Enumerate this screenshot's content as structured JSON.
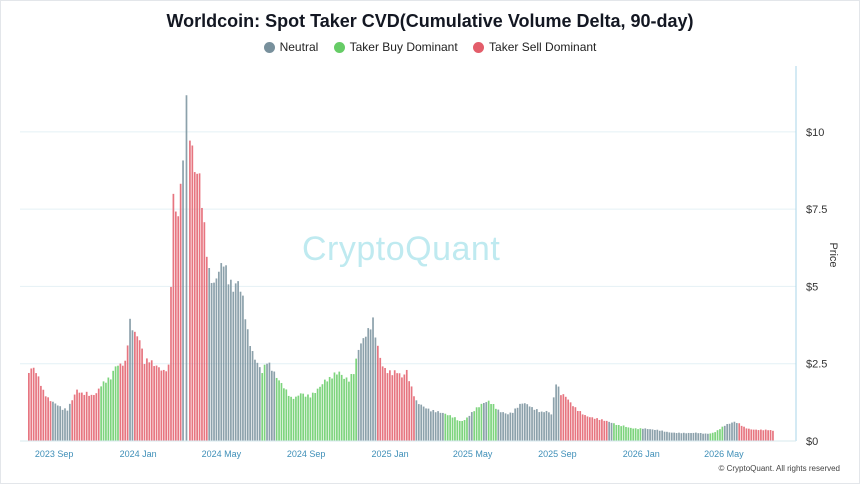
{
  "chart_data": {
    "type": "bar",
    "title": "Worldcoin: Spot Taker CVD(Cumulative Volume Delta, 90-day)",
    "ylabel": "Price",
    "ylim": [
      0,
      12
    ],
    "y_ticks": [
      "$0",
      "$2.5",
      "$5",
      "$7.5",
      "$10"
    ],
    "y_tick_values": [
      0,
      2.5,
      5,
      7.5,
      10
    ],
    "x_ticks": [
      "2023 Sep",
      "2024 Jan",
      "2024 May",
      "2024 Sep",
      "2025 Jan",
      "2025 May",
      "2025 Sep",
      "2026 Jan",
      "2026 May"
    ],
    "x_tick_dates": [
      "2023-09-01",
      "2024-01-01",
      "2024-05-01",
      "2024-09-01",
      "2025-01-01",
      "2025-05-01",
      "2025-09-01",
      "2026-01-01",
      "2026-05-01"
    ],
    "x_range": [
      "2023-07-25",
      "2026-08-05"
    ],
    "legend": [
      {
        "name": "Neutral",
        "color": "#78909c"
      },
      {
        "name": "Taker Buy Dominant",
        "color": "#66cc66"
      },
      {
        "name": "Taker Sell Dominant",
        "color": "#e35d6a"
      }
    ],
    "legend_position": "top-center",
    "grid": true,
    "series": [
      {
        "name": "Price",
        "points": [
          [
            "2023-07-25",
            2.2,
            "sell"
          ],
          [
            "2023-08-01",
            2.3,
            "sell"
          ],
          [
            "2023-08-08",
            2.0,
            "sell"
          ],
          [
            "2023-08-15",
            1.6,
            "sell"
          ],
          [
            "2023-08-22",
            1.4,
            "sell"
          ],
          [
            "2023-08-29",
            1.3,
            "neutral"
          ],
          [
            "2023-09-05",
            1.2,
            "neutral"
          ],
          [
            "2023-09-12",
            1.05,
            "neutral"
          ],
          [
            "2023-09-19",
            1.0,
            "neutral"
          ],
          [
            "2023-09-26",
            1.3,
            "sell"
          ],
          [
            "2023-10-03",
            1.6,
            "sell"
          ],
          [
            "2023-10-10",
            1.5,
            "sell"
          ],
          [
            "2023-10-17",
            1.55,
            "sell"
          ],
          [
            "2023-10-24",
            1.5,
            "sell"
          ],
          [
            "2023-10-31",
            1.6,
            "sell"
          ],
          [
            "2023-11-07",
            1.85,
            "buy"
          ],
          [
            "2023-11-14",
            1.95,
            "buy"
          ],
          [
            "2023-11-21",
            2.0,
            "buy"
          ],
          [
            "2023-11-28",
            2.35,
            "buy"
          ],
          [
            "2023-12-05",
            2.4,
            "sell"
          ],
          [
            "2023-12-12",
            2.5,
            "sell"
          ],
          [
            "2023-12-19",
            3.9,
            "neutral"
          ],
          [
            "2023-12-26",
            3.6,
            "sell"
          ],
          [
            "2024-01-02",
            3.4,
            "sell"
          ],
          [
            "2024-01-09",
            2.6,
            "sell"
          ],
          [
            "2024-01-16",
            2.6,
            "sell"
          ],
          [
            "2024-01-23",
            2.4,
            "sell"
          ],
          [
            "2024-01-30",
            2.3,
            "sell"
          ],
          [
            "2024-02-06",
            2.2,
            "sell"
          ],
          [
            "2024-02-13",
            2.4,
            "sell"
          ],
          [
            "2024-02-20",
            8.0,
            "sell"
          ],
          [
            "2024-02-27",
            7.5,
            "sell"
          ],
          [
            "2024-03-05",
            9.5,
            "neutral"
          ],
          [
            "2024-03-10",
            11.6,
            "neutral"
          ],
          [
            "2024-03-15",
            9.8,
            "sell"
          ],
          [
            "2024-03-22",
            8.5,
            "sell"
          ],
          [
            "2024-03-29",
            8.3,
            "sell"
          ],
          [
            "2024-04-05",
            6.8,
            "sell"
          ],
          [
            "2024-04-12",
            5.5,
            "neutral"
          ],
          [
            "2024-04-19",
            5.2,
            "neutral"
          ],
          [
            "2024-04-26",
            5.7,
            "neutral"
          ],
          [
            "2024-05-03",
            5.9,
            "neutral"
          ],
          [
            "2024-05-10",
            5.2,
            "neutral"
          ],
          [
            "2024-05-17",
            4.8,
            "neutral"
          ],
          [
            "2024-05-24",
            5.0,
            "neutral"
          ],
          [
            "2024-05-31",
            4.5,
            "neutral"
          ],
          [
            "2024-06-07",
            3.5,
            "neutral"
          ],
          [
            "2024-06-14",
            2.9,
            "neutral"
          ],
          [
            "2024-06-21",
            2.6,
            "neutral"
          ],
          [
            "2024-06-28",
            2.3,
            "buy"
          ],
          [
            "2024-07-05",
            2.6,
            "neutral"
          ],
          [
            "2024-07-12",
            2.3,
            "neutral"
          ],
          [
            "2024-07-19",
            2.0,
            "buy"
          ],
          [
            "2024-07-26",
            1.8,
            "buy"
          ],
          [
            "2024-08-02",
            1.6,
            "buy"
          ],
          [
            "2024-08-09",
            1.4,
            "buy"
          ],
          [
            "2024-08-16",
            1.45,
            "buy"
          ],
          [
            "2024-08-23",
            1.6,
            "buy"
          ],
          [
            "2024-08-30",
            1.5,
            "buy"
          ],
          [
            "2024-09-06",
            1.45,
            "buy"
          ],
          [
            "2024-09-13",
            1.55,
            "buy"
          ],
          [
            "2024-09-20",
            1.7,
            "buy"
          ],
          [
            "2024-09-27",
            1.9,
            "buy"
          ],
          [
            "2024-10-04",
            2.0,
            "buy"
          ],
          [
            "2024-10-11",
            2.2,
            "buy"
          ],
          [
            "2024-10-18",
            2.3,
            "buy"
          ],
          [
            "2024-10-25",
            2.1,
            "buy"
          ],
          [
            "2024-11-01",
            2.0,
            "buy"
          ],
          [
            "2024-11-08",
            2.2,
            "buy"
          ],
          [
            "2024-11-15",
            2.9,
            "neutral"
          ],
          [
            "2024-11-22",
            3.2,
            "neutral"
          ],
          [
            "2024-11-29",
            3.5,
            "neutral"
          ],
          [
            "2024-12-06",
            3.9,
            "neutral"
          ],
          [
            "2024-12-13",
            3.1,
            "sell"
          ],
          [
            "2024-12-20",
            2.5,
            "sell"
          ],
          [
            "2024-12-27",
            2.3,
            "sell"
          ],
          [
            "2025-01-03",
            2.2,
            "sell"
          ],
          [
            "2025-01-10",
            2.2,
            "sell"
          ],
          [
            "2025-01-17",
            2.0,
            "sell"
          ],
          [
            "2025-01-24",
            2.2,
            "sell"
          ],
          [
            "2025-01-31",
            1.7,
            "sell"
          ],
          [
            "2025-02-07",
            1.3,
            "neutral"
          ],
          [
            "2025-02-14",
            1.2,
            "neutral"
          ],
          [
            "2025-02-21",
            1.1,
            "neutral"
          ],
          [
            "2025-02-28",
            1.0,
            "neutral"
          ],
          [
            "2025-03-07",
            0.95,
            "neutral"
          ],
          [
            "2025-03-14",
            0.9,
            "neutral"
          ],
          [
            "2025-03-21",
            0.85,
            "buy"
          ],
          [
            "2025-03-28",
            0.8,
            "buy"
          ],
          [
            "2025-04-04",
            0.75,
            "buy"
          ],
          [
            "2025-04-11",
            0.65,
            "buy"
          ],
          [
            "2025-04-18",
            0.7,
            "buy"
          ],
          [
            "2025-04-25",
            0.85,
            "neutral"
          ],
          [
            "2025-05-02",
            1.0,
            "buy"
          ],
          [
            "2025-05-09",
            1.1,
            "buy"
          ],
          [
            "2025-05-16",
            1.2,
            "neutral"
          ],
          [
            "2025-05-23",
            1.25,
            "buy"
          ],
          [
            "2025-05-30",
            1.15,
            "buy"
          ],
          [
            "2025-06-06",
            1.0,
            "neutral"
          ],
          [
            "2025-06-13",
            0.95,
            "neutral"
          ],
          [
            "2025-06-20",
            0.9,
            "neutral"
          ],
          [
            "2025-06-27",
            0.95,
            "neutral"
          ],
          [
            "2025-07-04",
            1.1,
            "neutral"
          ],
          [
            "2025-07-11",
            1.2,
            "neutral"
          ],
          [
            "2025-07-18",
            1.15,
            "neutral"
          ],
          [
            "2025-07-25",
            1.05,
            "neutral"
          ],
          [
            "2025-08-01",
            1.0,
            "neutral"
          ],
          [
            "2025-08-08",
            0.95,
            "neutral"
          ],
          [
            "2025-08-15",
            1.0,
            "neutral"
          ],
          [
            "2025-08-22",
            0.9,
            "neutral"
          ],
          [
            "2025-08-29",
            1.9,
            "neutral"
          ],
          [
            "2025-09-05",
            1.5,
            "sell"
          ],
          [
            "2025-09-12",
            1.4,
            "sell"
          ],
          [
            "2025-09-19",
            1.2,
            "sell"
          ],
          [
            "2025-09-26",
            1.05,
            "sell"
          ],
          [
            "2025-10-03",
            0.95,
            "sell"
          ],
          [
            "2025-10-10",
            0.85,
            "sell"
          ],
          [
            "2025-10-17",
            0.8,
            "sell"
          ],
          [
            "2025-10-24",
            0.75,
            "sell"
          ],
          [
            "2025-10-31",
            0.7,
            "sell"
          ],
          [
            "2025-11-07",
            0.65,
            "sell"
          ],
          [
            "2025-11-14",
            0.6,
            "neutral"
          ],
          [
            "2025-11-21",
            0.55,
            "buy"
          ],
          [
            "2025-11-28",
            0.5,
            "buy"
          ],
          [
            "2025-12-05",
            0.5,
            "buy"
          ],
          [
            "2025-12-12",
            0.45,
            "buy"
          ],
          [
            "2025-12-19",
            0.42,
            "buy"
          ],
          [
            "2025-12-26",
            0.4,
            "buy"
          ],
          [
            "2026-01-02",
            0.4,
            "neutral"
          ],
          [
            "2026-01-09",
            0.38,
            "neutral"
          ],
          [
            "2026-01-16",
            0.36,
            "neutral"
          ],
          [
            "2026-01-23",
            0.35,
            "neutral"
          ],
          [
            "2026-01-30",
            0.33,
            "neutral"
          ],
          [
            "2026-02-06",
            0.3,
            "neutral"
          ],
          [
            "2026-02-13",
            0.28,
            "neutral"
          ],
          [
            "2026-02-20",
            0.27,
            "neutral"
          ],
          [
            "2026-02-27",
            0.26,
            "neutral"
          ],
          [
            "2026-03-06",
            0.25,
            "neutral"
          ],
          [
            "2026-03-13",
            0.25,
            "neutral"
          ],
          [
            "2026-03-20",
            0.26,
            "neutral"
          ],
          [
            "2026-03-27",
            0.25,
            "neutral"
          ],
          [
            "2026-04-03",
            0.24,
            "neutral"
          ],
          [
            "2026-04-10",
            0.25,
            "buy"
          ],
          [
            "2026-04-17",
            0.3,
            "buy"
          ],
          [
            "2026-04-24",
            0.4,
            "buy"
          ],
          [
            "2026-05-01",
            0.5,
            "neutral"
          ],
          [
            "2026-05-08",
            0.55,
            "neutral"
          ],
          [
            "2026-05-15",
            0.6,
            "neutral"
          ],
          [
            "2026-05-22",
            0.55,
            "sell"
          ],
          [
            "2026-05-29",
            0.45,
            "sell"
          ],
          [
            "2026-06-05",
            0.4,
            "sell"
          ],
          [
            "2026-06-12",
            0.38,
            "sell"
          ],
          [
            "2026-06-19",
            0.37,
            "sell"
          ],
          [
            "2026-06-26",
            0.36,
            "sell"
          ],
          [
            "2026-07-03",
            0.35,
            "sell"
          ],
          [
            "2026-07-10",
            0.33,
            "sell"
          ]
        ]
      }
    ]
  },
  "legend": {
    "neutral": "Neutral",
    "buy": "Taker Buy Dominant",
    "sell": "Taker Sell Dominant"
  },
  "colors": {
    "neutral": "#78909c",
    "buy": "#66cc66",
    "sell": "#e35d6a"
  },
  "watermark": "CryptoQuant",
  "credit": "© CryptoQuant. All rights reserved"
}
